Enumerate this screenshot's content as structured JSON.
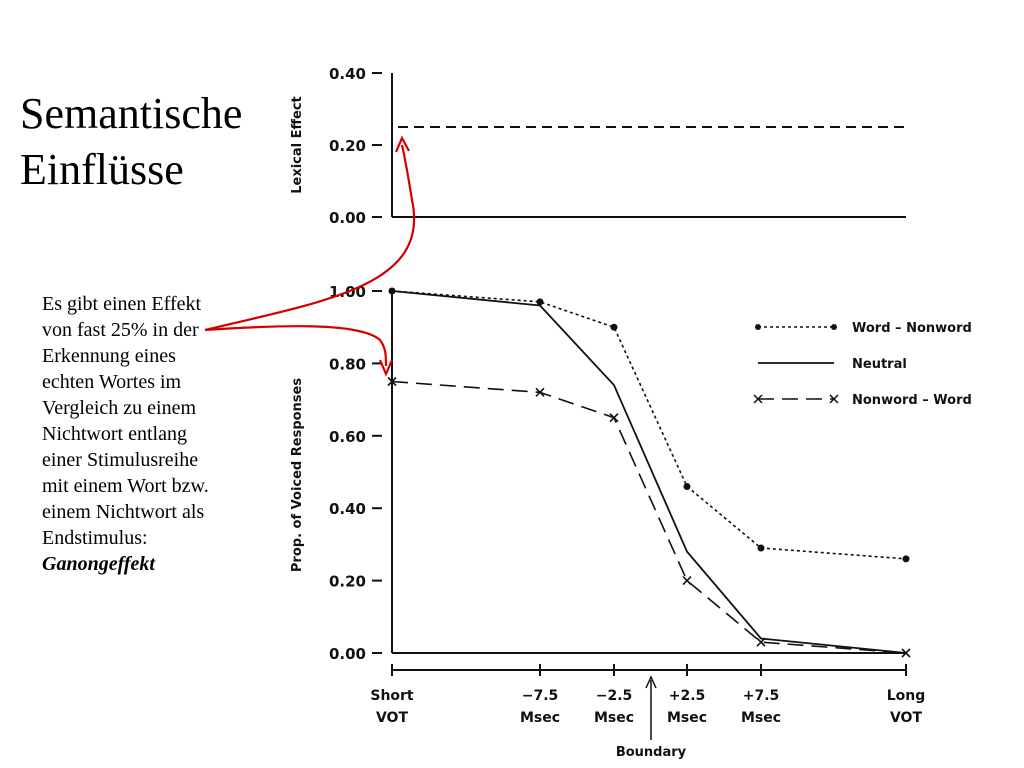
{
  "slide": {
    "title_lines": [
      "Semantische",
      "Einflüsse"
    ],
    "text_lines": [
      "Es gibt einen Effekt",
      "von fast 25% in der",
      "Erkennung eines",
      "echten Wortes im",
      "Vergleich zu einem",
      "Nichtwort entlang",
      "einer Stimulusreihe",
      "mit einem Wort bzw.",
      "einem Nichtwort als",
      "Endstimulus:"
    ],
    "emphasis": "Ganongeffekt",
    "arrow_color": "#d40000"
  },
  "chart_data": [
    {
      "type": "line",
      "ylabel": "Lexical Effect",
      "ylim": [
        0,
        0.4
      ],
      "yticks": [
        "0.40",
        "0.20",
        "0.00"
      ],
      "series": [
        {
          "values": [
            0.25,
            0.25
          ],
          "style": "dashed"
        }
      ]
    },
    {
      "type": "line",
      "ylabel": "Prop. of Voiced Responses",
      "ylim": [
        0,
        1.0
      ],
      "yticks": [
        "1.00",
        "0.80",
        "0.60",
        "0.40",
        "0.20",
        "0.00"
      ],
      "categories": [
        [
          "Short",
          "VOT"
        ],
        [
          "−7.5",
          "Msec"
        ],
        [
          "−2.5",
          "Msec"
        ],
        [
          "+2.5",
          "Msec"
        ],
        [
          "+7.5",
          "Msec"
        ],
        [
          "Long",
          "VOT"
        ]
      ],
      "boundary_label": "Boundary",
      "legend_position": "top-right",
      "series": [
        {
          "name": "Word – Nonword",
          "style": "dotted",
          "marker": "dot",
          "values": [
            1.0,
            0.97,
            0.9,
            0.46,
            0.29,
            0.26
          ]
        },
        {
          "name": "Neutral",
          "style": "solid",
          "marker": "none",
          "values": [
            1.0,
            0.96,
            0.74,
            0.28,
            0.04,
            0.0
          ]
        },
        {
          "name": "Nonword – Word",
          "style": "longdash",
          "marker": "x",
          "values": [
            0.75,
            0.72,
            0.65,
            0.2,
            0.03,
            0.0
          ]
        }
      ]
    }
  ]
}
